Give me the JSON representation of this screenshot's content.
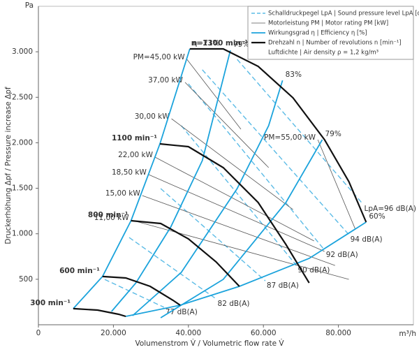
{
  "chart_data": {
    "type": "fan-curve",
    "xlabel": "Volumenstrom V̇ / Volumetric flow rate V̇",
    "ylabel": "Druckerhöhung Δpf / Pressure increase Δpf",
    "xunit": "m³/h",
    "yunit": "Pa",
    "xlim": [
      0,
      100000
    ],
    "ylim": [
      0,
      3500
    ],
    "xticks": [
      0,
      {
        "value": 20000,
        "label": "20.000"
      },
      {
        "value": 40000,
        "label": "40.000"
      },
      {
        "value": 60000,
        "label": "60.000"
      },
      {
        "value": 80000,
        "label": "80.000"
      }
    ],
    "yticks": [
      500,
      {
        "value": 1000,
        "label": "1.000"
      },
      {
        "value": 1500,
        "label": "1.500"
      },
      {
        "value": 2000,
        "label": "2.000"
      },
      {
        "value": 2500,
        "label": "2.500"
      },
      {
        "value": 3000,
        "label": "3.000"
      }
    ],
    "legend": {
      "position": "top-right",
      "entries": [
        {
          "label": "Schalldruckpegel LpA | Sound pressure level LpA [dB(A)]",
          "color": "#5bbbe6",
          "dash": true,
          "width": 1.5
        },
        {
          "label": "Motorleistung PM | Motor rating PM [kW]",
          "color": "#555555",
          "dash": false,
          "width": 0.8
        },
        {
          "label": "Wirkungsgrad η | Efficiency η [%]",
          "color": "#1ba3dc",
          "dash": false,
          "width": 1.8
        },
        {
          "label": "Drehzahl n | Number of revolutions n [min⁻¹]",
          "color": "#111111",
          "dash": false,
          "width": 2.2
        },
        {
          "label": "Luftdichte | Air density ρ = 1,2 kg/m³"
        }
      ]
    },
    "sound": {
      "color": "#5bbbe6",
      "dash": true,
      "width": 1.4,
      "series": [
        {
          "name": "77 dB(A)",
          "x": [
            17700,
            33500
          ],
          "y": [
            498,
            192
          ]
        },
        {
          "name": "82 dB(A)",
          "x": [
            24200,
            47400
          ],
          "y": [
            959,
            284
          ]
        },
        {
          "name": "87 dB(A)",
          "x": [
            32600,
            60500
          ],
          "y": [
            1497,
            483
          ]
        },
        {
          "name": "90 dB(A)",
          "x": [
            38100,
            68800
          ],
          "y": [
            2188,
            652
          ]
        },
        {
          "name": "92 dB(A)",
          "x": [
            40000,
            76300
          ],
          "y": [
            2648,
            821
          ]
        },
        {
          "name": "94 dB(A)",
          "x": [
            43700,
            82800
          ],
          "y": [
            2802,
            990
          ]
        },
        {
          "name": "LpA=96 dB(A)",
          "x": [
            53000,
            86500
          ],
          "y": [
            2917,
            1328
          ]
        }
      ]
    },
    "power": {
      "color": "#555555",
      "dash": false,
      "width": 0.8,
      "series": [
        {
          "name": "PM=45,00 kW",
          "x": [
            39600,
            54000
          ],
          "y": [
            2917,
            2149
          ]
        },
        {
          "name": "37,00 kW",
          "x": [
            39100,
            61400
          ],
          "y": [
            2664,
            1727
          ]
        },
        {
          "name": "30,00 kW",
          "x": [
            35500,
            67900
          ],
          "y": [
            2264,
            1266
          ]
        },
        {
          "name": "22,00 kW",
          "x": [
            31100,
            73500
          ],
          "y": [
            1842,
            921
          ]
        },
        {
          "name": "18,50 kW",
          "x": [
            29400,
            76300
          ],
          "y": [
            1650,
            806
          ]
        },
        {
          "name": "15,00 kW",
          "x": [
            27700,
            79100
          ],
          "y": [
            1420,
            652
          ]
        },
        {
          "name": "11,00 kW",
          "x": [
            24700,
            82800
          ],
          "y": [
            1151,
            499
          ]
        },
        {
          "name": "PM=55,00 kW",
          "x": [
            74500,
            84500
          ],
          "y": [
            2034,
            1050
          ]
        }
      ]
    },
    "efficiency": {
      "color": "#1ba3dc",
      "dash": false,
      "width": 1.8,
      "series": [
        {
          "name": "η=71%",
          "x": [
            9300,
            17100,
            24700,
            32400,
            40370
          ],
          "y": [
            177,
            530,
            1144,
            1988,
            3032
          ]
        },
        {
          "name": "79%",
          "x": [
            19500,
            26000,
            35300,
            43700,
            51200
          ],
          "y": [
            146,
            460,
            1075,
            1804,
            3016
          ]
        },
        {
          "name": "83%",
          "x": [
            25100,
            38100,
            53000,
            61400,
            65100
          ],
          "y": [
            100,
            576,
            1497,
            2188,
            2686
          ]
        },
        {
          "name": "79%",
          "x": [
            32600,
            49300,
            66000,
            75700
          ],
          "y": [
            77,
            499,
            1343,
            2034
          ]
        },
        {
          "name": "60%",
          "x": [
            23300,
            37800,
            53600,
            72200,
            87400
          ],
          "y": [
            92,
            215,
            422,
            729,
            1128
          ]
        }
      ]
    },
    "speed": {
      "color": "#111111",
      "dash": false,
      "width": 2.2,
      "series": [
        {
          "name": "n=1300 min⁻¹",
          "x": [
            40370,
            49300,
            58600,
            67900,
            76300,
            82800,
            87400
          ],
          "y": [
            3032,
            3032,
            2840,
            2494,
            2034,
            1573,
            1128
          ]
        },
        {
          "name": "1100 min⁻¹",
          "x": [
            32400,
            40000,
            49300,
            58600,
            66000,
            72200
          ],
          "y": [
            1988,
            1957,
            1727,
            1343,
            883,
            460
          ]
        },
        {
          "name": "800 min⁻¹",
          "x": [
            24700,
            32600,
            40000,
            47400,
            53600
          ],
          "y": [
            1144,
            1113,
            944,
            691,
            422
          ]
        },
        {
          "name": "600 min⁻¹",
          "x": [
            17100,
            23300,
            29800,
            35900,
            37800
          ],
          "y": [
            530,
            514,
            422,
            269,
            215
          ]
        },
        {
          "name": "300 min⁻¹",
          "x": [
            9300,
            15800,
            21400,
            23300
          ],
          "y": [
            177,
            161,
            115,
            92
          ]
        }
      ]
    }
  }
}
